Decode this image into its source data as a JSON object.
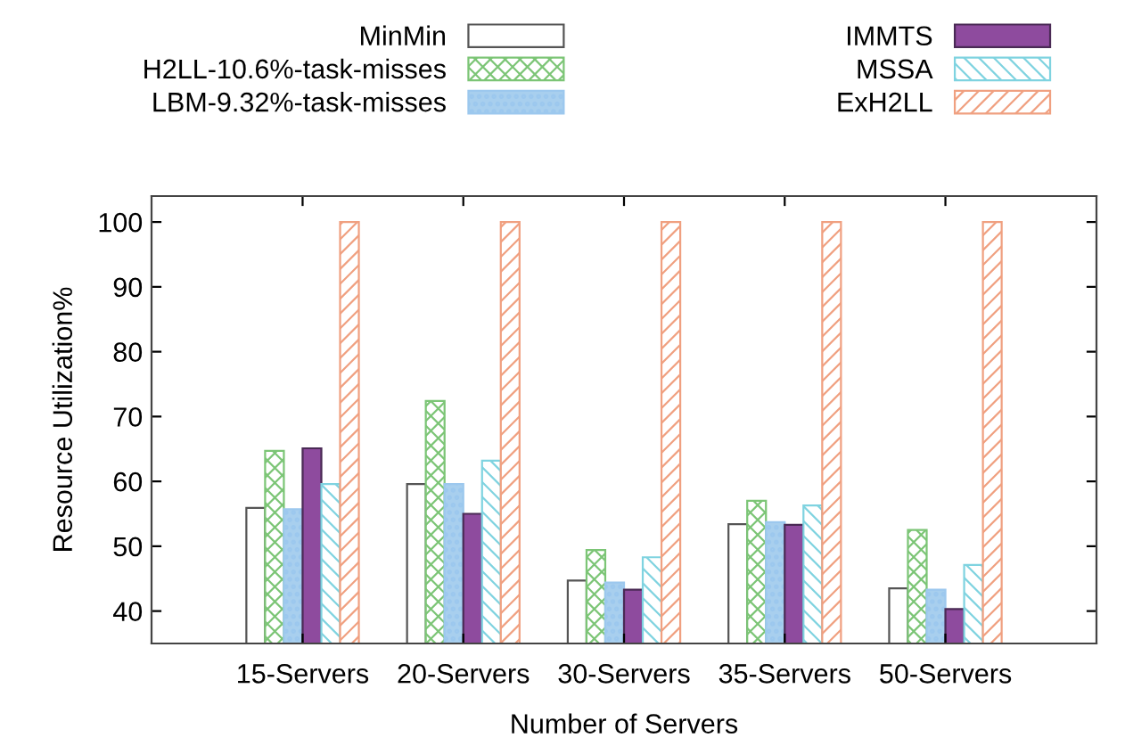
{
  "chart_data": {
    "type": "bar",
    "xlabel": "Number of Servers",
    "ylabel": "Resource Utilization%",
    "categories": [
      "15-Servers",
      "20-Servers",
      "30-Servers",
      "35-Servers",
      "50-Servers"
    ],
    "series": [
      {
        "name": "MinMin",
        "color": "#ffffff",
        "values": [
          55.9,
          59.6,
          44.7,
          53.4,
          43.5
        ]
      },
      {
        "name": "H2LL-10.6%-task-misses",
        "color": "#7cc576",
        "values": [
          64.7,
          72.4,
          49.4,
          57.0,
          52.5
        ]
      },
      {
        "name": "LBM-9.32%-task-misses",
        "color": "#9cc8ee",
        "values": [
          55.7,
          59.6,
          44.4,
          53.7,
          43.3
        ]
      },
      {
        "name": "IMMTS",
        "color": "#8e4b9e",
        "values": [
          65.1,
          55.0,
          43.3,
          53.3,
          40.3
        ]
      },
      {
        "name": "MSSA",
        "color": "#7fd3e0",
        "values": [
          59.6,
          63.2,
          48.3,
          56.3,
          47.1
        ]
      },
      {
        "name": "ExH2LL",
        "color": "#f0a080",
        "values": [
          100,
          100,
          100,
          100,
          100
        ]
      }
    ],
    "ylim": [
      35,
      104
    ],
    "yticks": [
      40,
      50,
      60,
      70,
      80,
      90,
      100
    ],
    "grid": false,
    "legend": "top"
  }
}
